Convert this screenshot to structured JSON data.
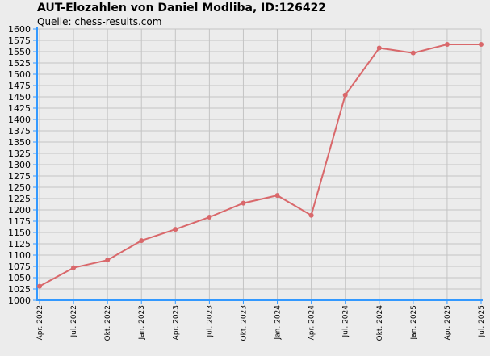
{
  "chart_data": {
    "type": "line",
    "title": "AUT-Elozahlen von Daniel Modliba, ID:126422",
    "subtitle": "Quelle: chess-results.com",
    "xlabel": "",
    "ylabel": "",
    "categories": [
      "Apr. 2022",
      "Jul. 2022",
      "Okt. 2022",
      "Jan. 2023",
      "Apr. 2023",
      "Jul. 2023",
      "Okt. 2023",
      "Jan. 2024",
      "Apr. 2024",
      "Jul. 2024",
      "Okt. 2024",
      "Jan. 2025",
      "Apr. 2025",
      "Jul. 2025"
    ],
    "series": [
      {
        "values": [
          1031,
          1072,
          1089,
          1132,
          1157,
          1184,
          1215,
          1232,
          1188,
          1454,
          1558,
          1547,
          1566,
          1566
        ]
      }
    ],
    "ylim": [
      1000,
      1600
    ],
    "yticks": [
      1000,
      1025,
      1050,
      1075,
      1100,
      1125,
      1150,
      1175,
      1200,
      1225,
      1250,
      1275,
      1300,
      1325,
      1350,
      1375,
      1400,
      1425,
      1450,
      1475,
      1500,
      1525,
      1550,
      1575,
      1600
    ],
    "grid": true,
    "legend": "none",
    "colors": {
      "line": "#d9686b",
      "axis": "#3399ff",
      "grid": "#c4c4c4",
      "background": "#ececec"
    }
  }
}
